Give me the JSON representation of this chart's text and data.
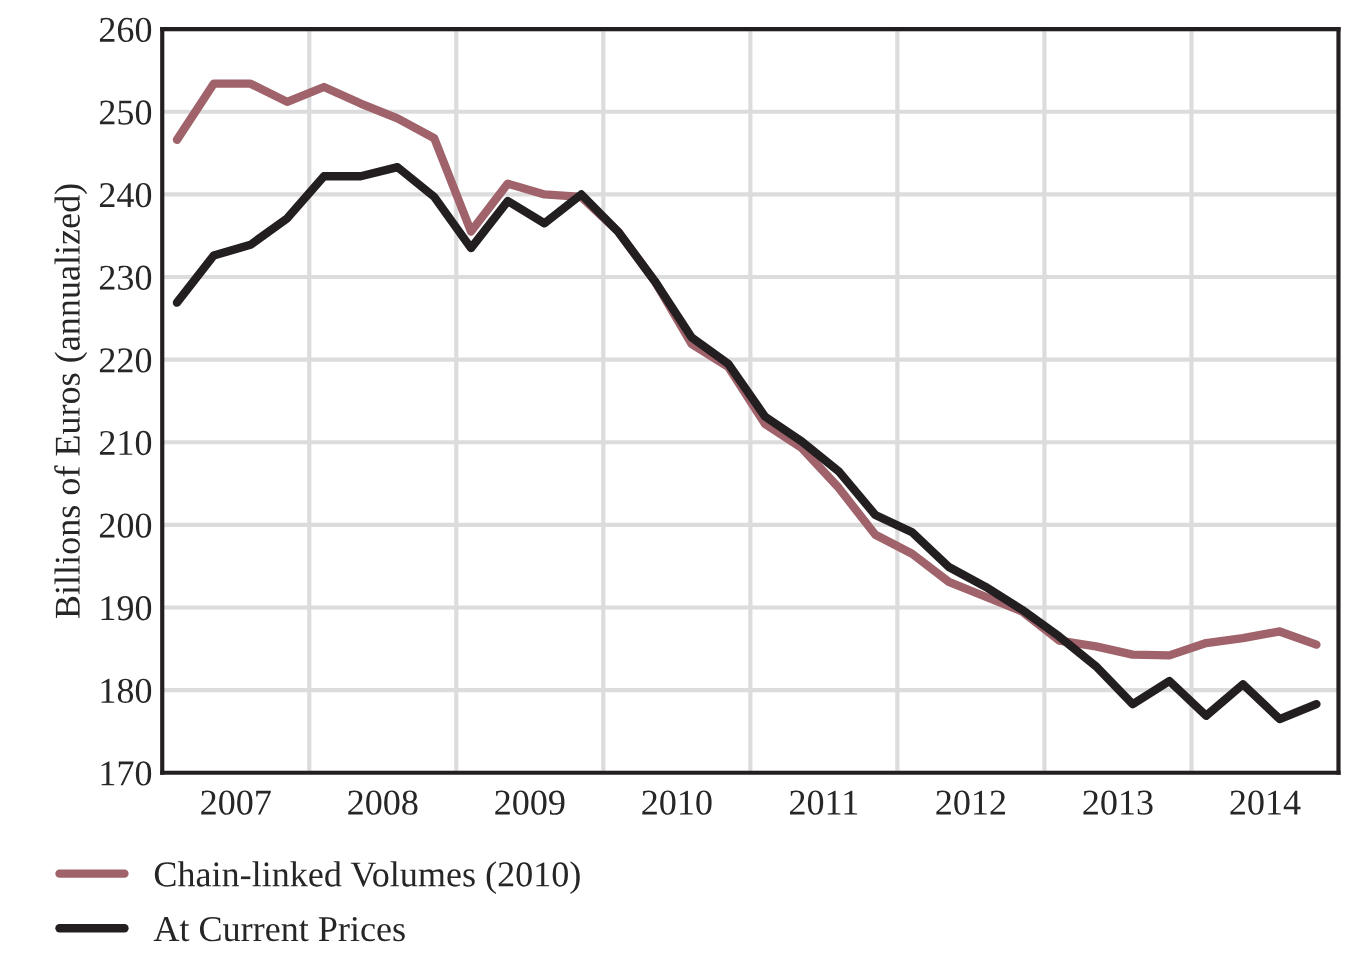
{
  "chart_data": {
    "type": "line",
    "ylabel": "Billions of Euros (annualized)",
    "x": [
      2007.1,
      2007.35,
      2007.6,
      2007.85,
      2008.1,
      2008.35,
      2008.6,
      2008.85,
      2009.1,
      2009.35,
      2009.6,
      2009.85,
      2010.1,
      2010.35,
      2010.6,
      2010.85,
      2011.1,
      2011.35,
      2011.6,
      2011.85,
      2012.1,
      2012.35,
      2012.6,
      2012.85,
      2013.1,
      2013.35,
      2013.6,
      2013.85,
      2014.1,
      2014.35,
      2014.6,
      2014.85
    ],
    "series": [
      {
        "name": "Chain-linked Volumes (2010)",
        "color": "#a0636b",
        "values": [
          246.6,
          253.4,
          253.4,
          251.2,
          253.0,
          251.0,
          249.2,
          246.8,
          235.5,
          241.3,
          240.0,
          239.7,
          235.5,
          229.5,
          221.9,
          219.1,
          212.2,
          209.3,
          204.5,
          198.8,
          196.5,
          193.1,
          191.3,
          189.5,
          186.0,
          185.3,
          184.3,
          184.2,
          185.7,
          186.3,
          187.1,
          185.5
        ]
      },
      {
        "name": "At Current Prices",
        "color": "#231f20",
        "values": [
          226.9,
          232.6,
          233.9,
          237.1,
          242.2,
          242.2,
          243.3,
          239.7,
          233.5,
          239.2,
          236.5,
          240.0,
          235.5,
          229.5,
          222.7,
          219.5,
          213.1,
          210.1,
          206.5,
          201.2,
          199.1,
          194.9,
          192.5,
          189.7,
          186.5,
          182.9,
          178.3,
          181.1,
          176.9,
          180.7,
          176.5,
          178.3
        ]
      }
    ],
    "xlim": [
      2007,
      2015
    ],
    "xticks": [
      {
        "value": 2008,
        "label": null
      },
      {
        "value": 2009,
        "label": null
      },
      {
        "value": 2010,
        "label": null
      },
      {
        "value": 2011,
        "label": null
      },
      {
        "value": 2012,
        "label": null
      },
      {
        "value": 2013,
        "label": null
      },
      {
        "value": 2014,
        "label": null
      },
      {
        "value": 2007.5,
        "label": "2007"
      },
      {
        "value": 2008.5,
        "label": "2008"
      },
      {
        "value": 2009.5,
        "label": "2009"
      },
      {
        "value": 2010.5,
        "label": "2010"
      },
      {
        "value": 2011.5,
        "label": "2011"
      },
      {
        "value": 2012.5,
        "label": "2012"
      },
      {
        "value": 2013.5,
        "label": "2013"
      },
      {
        "value": 2014.5,
        "label": "2014"
      }
    ],
    "ylim": [
      170,
      260
    ],
    "yticks": [
      170,
      180,
      190,
      200,
      210,
      220,
      230,
      240,
      250,
      260
    ],
    "grid": true,
    "legend": "bottom left",
    "line_style": "solid",
    "marker": "none"
  }
}
